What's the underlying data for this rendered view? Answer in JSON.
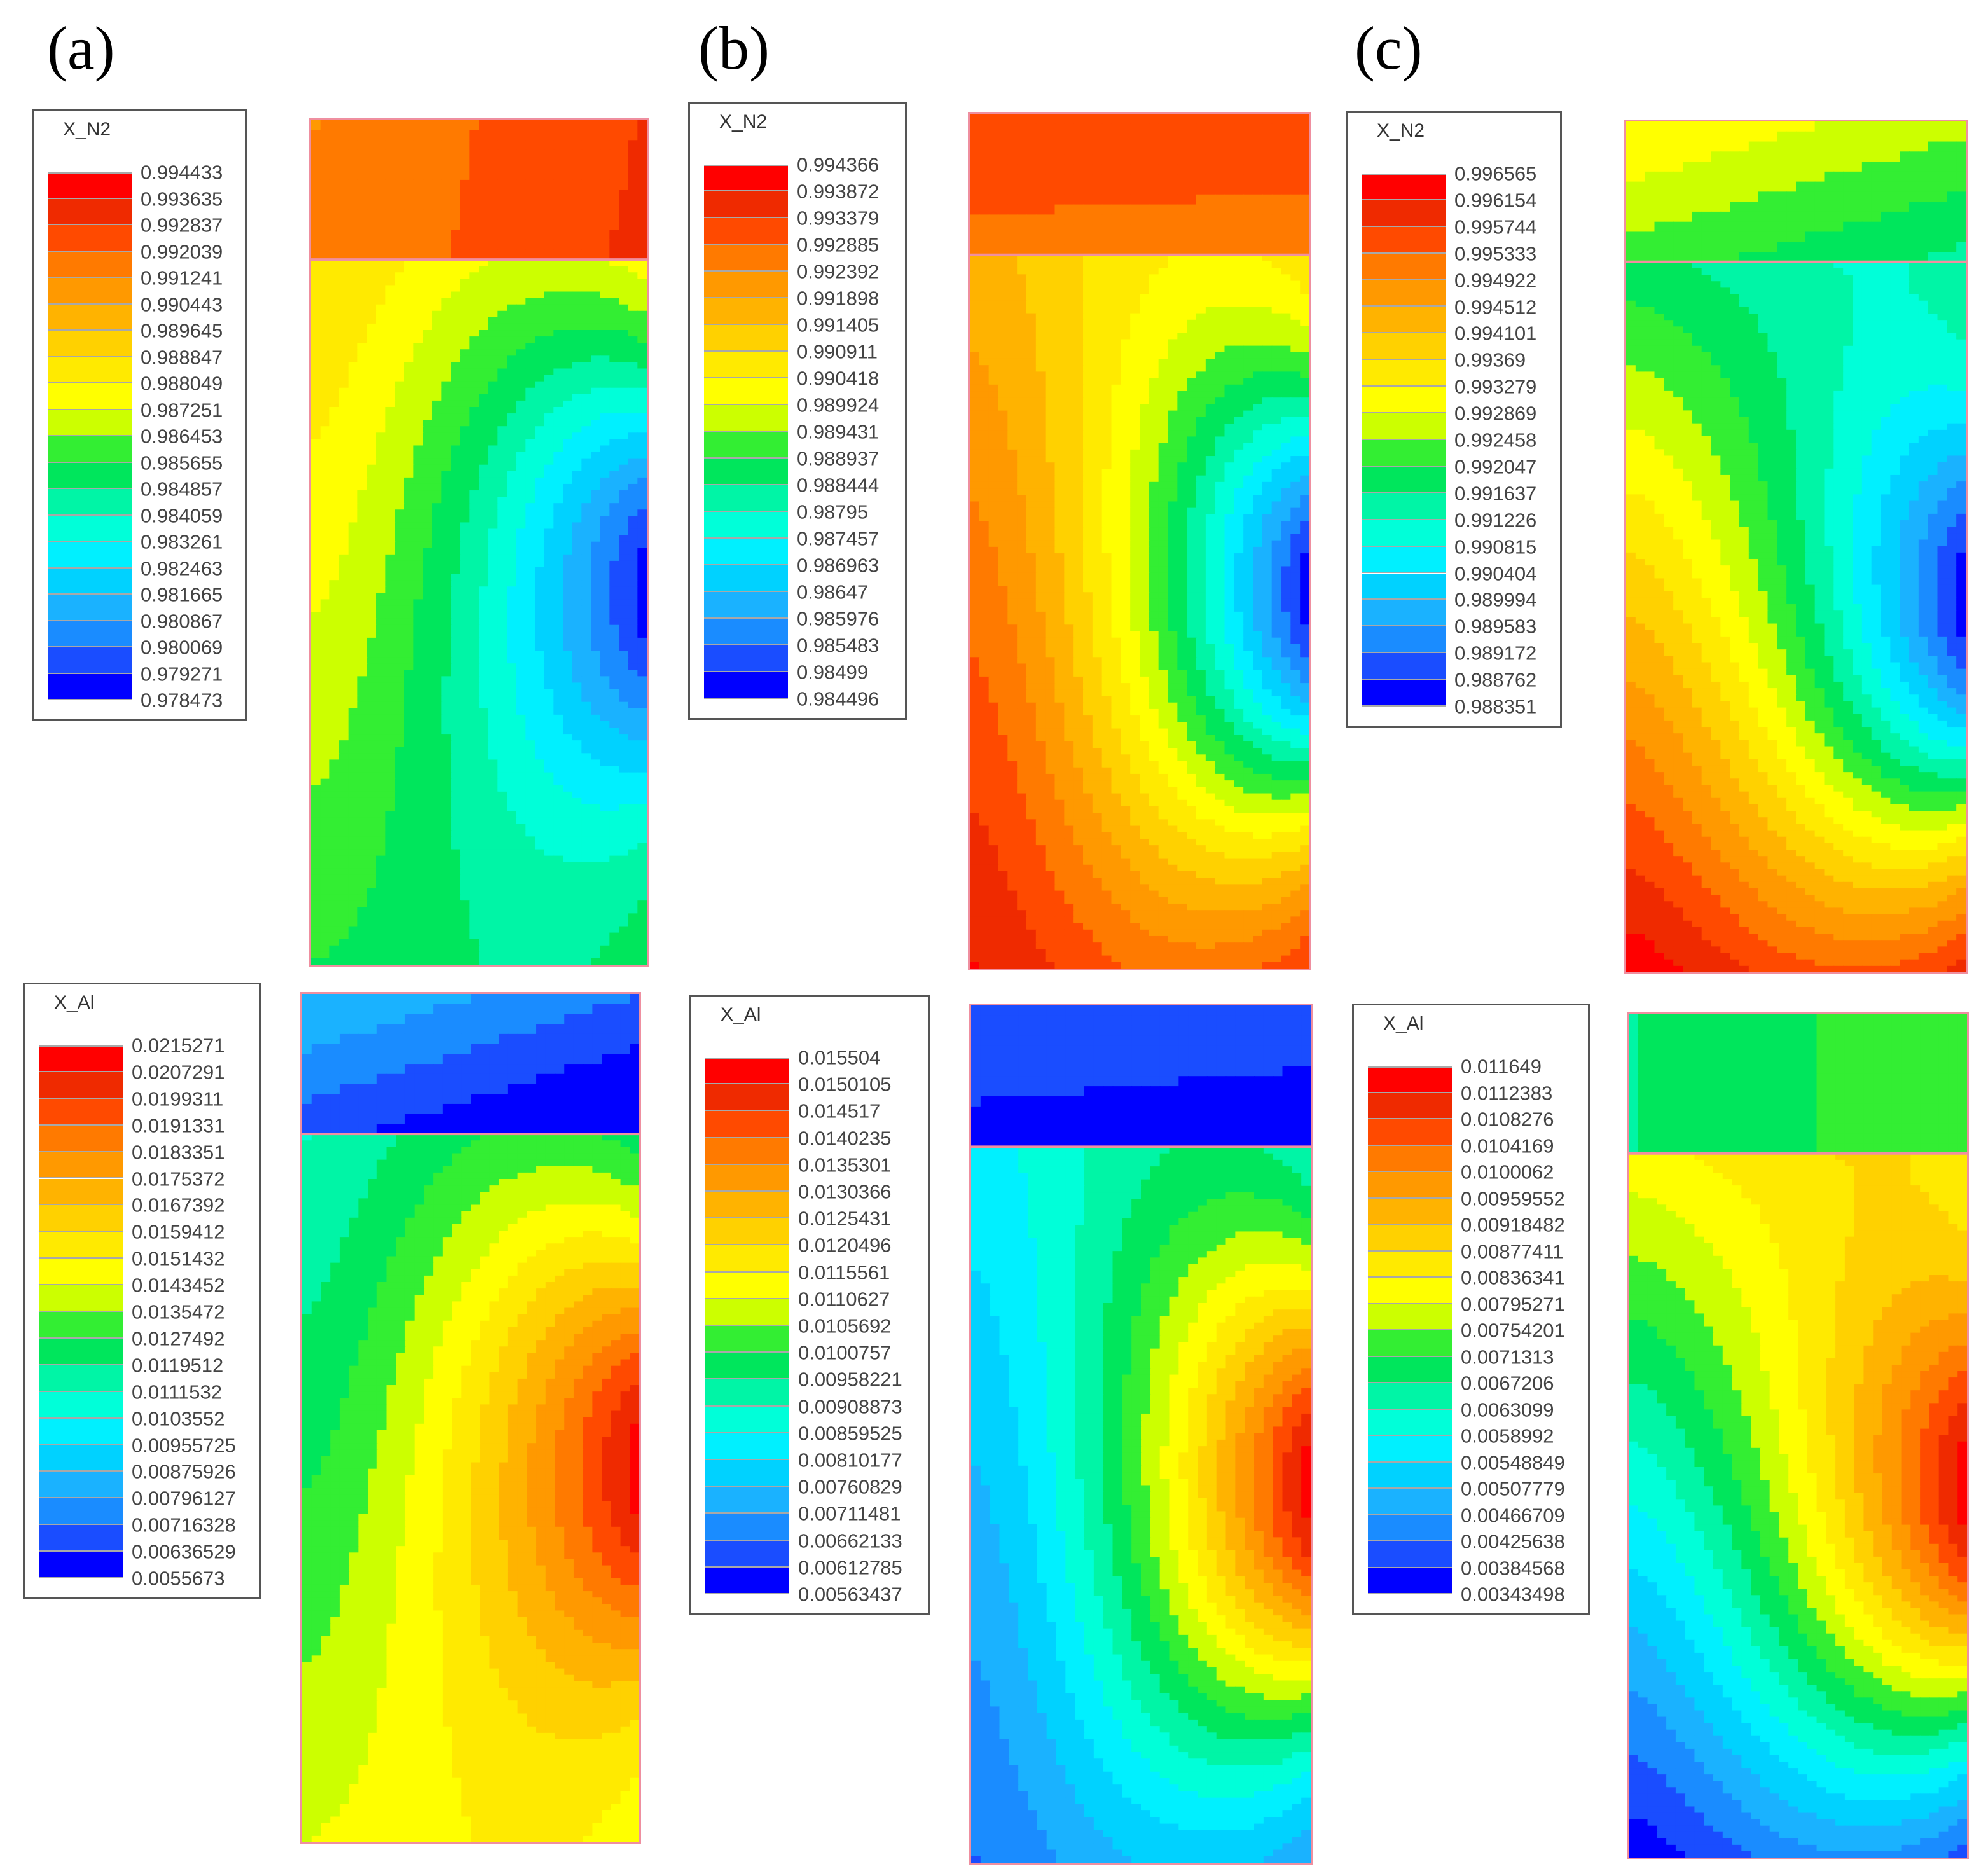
{
  "panels": [
    {
      "label": "(a)",
      "fields": [
        {
          "variable": "X_N2",
          "levels": [
            "0.994433",
            "0.993635",
            "0.992837",
            "0.992039",
            "0.991241",
            "0.990443",
            "0.989645",
            "0.988847",
            "0.988049",
            "0.987251",
            "0.986453",
            "0.985655",
            "0.984857",
            "0.984059",
            "0.983261",
            "0.982463",
            "0.981665",
            "0.980867",
            "0.980069",
            "0.979271",
            "0.978473"
          ],
          "max_level": 0.994433,
          "min_level": 0.978473,
          "upper_region_level": [
            0.2,
            0.03
          ],
          "lower_region_top_level": 0.35,
          "lower_region_bottom_level": 0.55,
          "lower_region_core_level": 0.97
        },
        {
          "variable": "X_Al",
          "levels": [
            "0.0215271",
            "0.0207291",
            "0.0199311",
            "0.0191331",
            "0.0183351",
            "0.0175372",
            "0.0167392",
            "0.0159412",
            "0.0151432",
            "0.0143452",
            "0.0135472",
            "0.0127492",
            "0.0119512",
            "0.0111532",
            "0.0103552",
            "0.00955725",
            "0.00875926",
            "0.00796127",
            "0.00716328",
            "0.00636529",
            "0.0055673"
          ],
          "max_level": 0.0215271,
          "min_level": 0.0055673,
          "upper_region_level": [
            0.8,
            0.97
          ],
          "lower_region_top_level": 0.65,
          "lower_region_bottom_level": 0.45,
          "lower_region_core_level": 0.03
        }
      ]
    },
    {
      "label": "(b)",
      "fields": [
        {
          "variable": "X_N2",
          "levels": [
            "0.994366",
            "0.993872",
            "0.993379",
            "0.992885",
            "0.992392",
            "0.991898",
            "0.991405",
            "0.990911",
            "0.990418",
            "0.989924",
            "0.989431",
            "0.988937",
            "0.988444",
            "0.98795",
            "0.987457",
            "0.986963",
            "0.98647",
            "0.985976",
            "0.985483",
            "0.98499",
            "0.984496"
          ],
          "max_level": 0.994366,
          "min_level": 0.984496,
          "upper_region_level": [
            0.1,
            0.12
          ],
          "lower_region_top_level": 0.28,
          "lower_region_bottom_level": 0.05,
          "lower_region_core_level": 0.97
        },
        {
          "variable": "X_Al",
          "levels": [
            "0.015504",
            "0.0150105",
            "0.014517",
            "0.0140235",
            "0.0135301",
            "0.0130366",
            "0.0125431",
            "0.0120496",
            "0.0115561",
            "0.0110627",
            "0.0105692",
            "0.0100757",
            "0.00958221",
            "0.00908873",
            "0.00859525",
            "0.00810177",
            "0.00760829",
            "0.00711481",
            "0.00662133",
            "0.00612785",
            "0.00563437"
          ],
          "max_level": 0.015504,
          "min_level": 0.00563437,
          "upper_region_level": [
            0.9,
            0.93
          ],
          "lower_region_top_level": 0.72,
          "lower_region_bottom_level": 0.9,
          "lower_region_core_level": 0.03
        }
      ]
    },
    {
      "label": "(c)",
      "fields": [
        {
          "variable": "X_N2",
          "levels": [
            "0.996565",
            "0.996154",
            "0.995744",
            "0.995333",
            "0.994922",
            "0.994512",
            "0.994101",
            "0.99369",
            "0.993279",
            "0.992869",
            "0.992458",
            "0.992047",
            "0.991637",
            "0.991226",
            "0.990815",
            "0.990404",
            "0.989994",
            "0.989583",
            "0.989172",
            "0.988762",
            "0.988351"
          ],
          "max_level": 0.996565,
          "min_level": 0.988351,
          "upper_region_level": [
            0.4,
            0.55
          ],
          "lower_region_top_level": 0.58,
          "lower_region_bottom_level": 0.02,
          "lower_region_core_level": 0.97
        },
        {
          "variable": "X_Al",
          "levels": [
            "0.011649",
            "0.0112383",
            "0.0108276",
            "0.0104169",
            "0.0100062",
            "0.00959552",
            "0.00918482",
            "0.00877411",
            "0.00836341",
            "0.00795271",
            "0.00754201",
            "0.0071313",
            "0.0067206",
            "0.0063099",
            "0.0058992",
            "0.00548849",
            "0.00507779",
            "0.00466709",
            "0.00425638",
            "0.00384568",
            "0.00343498"
          ],
          "max_level": 0.011649,
          "min_level": 0.00343498,
          "upper_region_level": [
            0.6,
            0.45
          ],
          "lower_region_top_level": 0.42,
          "lower_region_bottom_level": 0.98,
          "lower_region_core_level": 0.03
        }
      ]
    }
  ],
  "colormap": [
    "#ff0000",
    "#ef2a00",
    "#ff4a00",
    "#ff7a00",
    "#ff9900",
    "#ffb300",
    "#ffd100",
    "#ffea00",
    "#ffff00",
    "#ccff00",
    "#88ff00",
    "#33ee33",
    "#00e65c",
    "#00f5a6",
    "#00ffd9",
    "#00f0ff",
    "#00d2ff",
    "#1ab2ff",
    "#1a8cff",
    "#1a4dff",
    "#0000ff"
  ]
}
